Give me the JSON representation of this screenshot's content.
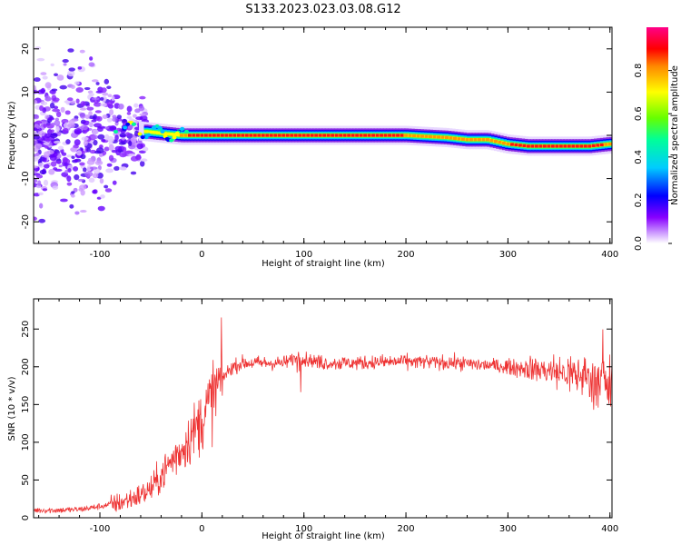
{
  "title": "S133.2023.023.03.08.G12",
  "chart_data": [
    {
      "type": "heatmap",
      "xlabel": "Height of straight line (km)",
      "ylabel": "Frequency (Hz)",
      "xlim": [
        -165,
        402
      ],
      "ylim": [
        -25,
        25
      ],
      "xticks": [
        -100,
        0,
        100,
        200,
        300,
        400
      ],
      "yticks": [
        -20,
        -10,
        0,
        10,
        20
      ],
      "colorbar": {
        "label": "Normalized spectral amplitude",
        "range": [
          0,
          1
        ],
        "ticks": [
          "0.0",
          "0.2",
          "0.4",
          "0.6",
          "0.8"
        ]
      },
      "ridge": {
        "x": [
          -80,
          -60,
          -40,
          -20,
          0,
          40,
          60,
          100,
          150,
          200,
          240,
          260,
          280,
          300,
          320,
          350,
          380,
          400
        ],
        "frequency_hz": [
          2,
          1,
          0.5,
          0,
          0,
          0,
          0,
          0,
          0,
          0,
          -0.5,
          -1,
          -1,
          -2,
          -2.5,
          -2.5,
          -2.5,
          -2
        ]
      }
    },
    {
      "type": "line",
      "xlabel": "Height of straight line (km)",
      "ylabel": "SNR (10 * v/v)",
      "xlim": [
        -165,
        402
      ],
      "ylim": [
        0,
        290
      ],
      "xticks": [
        -100,
        0,
        100,
        200,
        300,
        400
      ],
      "yticks": [
        0,
        50,
        100,
        150,
        200,
        250
      ],
      "color": "#ee3333",
      "x": [
        -165,
        -140,
        -120,
        -100,
        -80,
        -60,
        -50,
        -40,
        -30,
        -20,
        -10,
        0,
        10,
        20,
        30,
        40,
        60,
        80,
        90,
        95,
        100,
        120,
        150,
        200,
        250,
        300,
        320,
        340,
        360,
        380,
        390,
        400
      ],
      "y": [
        10,
        10,
        11,
        15,
        20,
        30,
        38,
        55,
        75,
        90,
        110,
        130,
        160,
        185,
        200,
        205,
        205,
        205,
        210,
        215,
        210,
        205,
        205,
        207,
        205,
        200,
        198,
        195,
        190,
        185,
        180,
        175
      ]
    }
  ]
}
